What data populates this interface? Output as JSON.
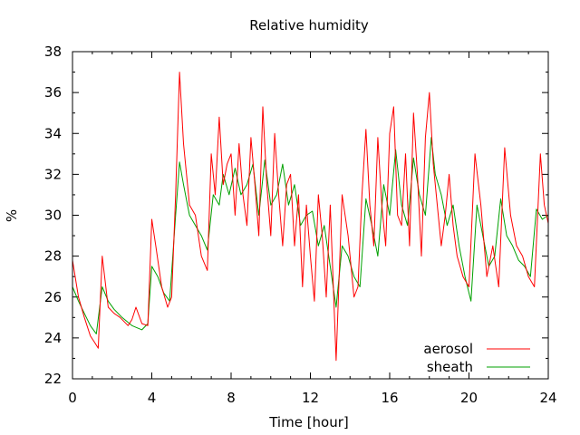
{
  "chart_data": {
    "type": "line",
    "title": "Relative humidity",
    "xlabel": "Time [hour]",
    "ylabel": "%",
    "xlim": [
      0,
      24
    ],
    "ylim": [
      22,
      38
    ],
    "xticks": [
      0,
      4,
      8,
      12,
      16,
      20,
      24
    ],
    "yticks": [
      22,
      24,
      26,
      28,
      30,
      32,
      34,
      36,
      38
    ],
    "grid": false,
    "legend_position": "bottom-right",
    "series": [
      {
        "name": "aerosol",
        "color": "#ff0000",
        "x": [
          0.0,
          0.3,
          0.6,
          0.9,
          1.1,
          1.3,
          1.5,
          1.8,
          2.1,
          2.4,
          2.8,
          3.0,
          3.2,
          3.5,
          3.8,
          4.0,
          4.2,
          4.5,
          4.8,
          5.0,
          5.2,
          5.4,
          5.6,
          5.9,
          6.2,
          6.5,
          6.8,
          7.0,
          7.2,
          7.4,
          7.6,
          7.8,
          8.0,
          8.2,
          8.4,
          8.6,
          8.8,
          9.0,
          9.2,
          9.4,
          9.6,
          9.8,
          10.0,
          10.2,
          10.4,
          10.6,
          10.8,
          11.0,
          11.2,
          11.4,
          11.6,
          11.8,
          12.0,
          12.2,
          12.4,
          12.6,
          12.8,
          13.0,
          13.3,
          13.6,
          13.9,
          14.2,
          14.4,
          14.6,
          14.8,
          15.0,
          15.2,
          15.4,
          15.6,
          15.8,
          16.0,
          16.2,
          16.4,
          16.6,
          16.8,
          17.0,
          17.2,
          17.4,
          17.6,
          17.8,
          18.0,
          18.2,
          18.4,
          18.6,
          18.8,
          19.0,
          19.2,
          19.4,
          19.7,
          20.0,
          20.3,
          20.6,
          20.9,
          21.2,
          21.5,
          21.8,
          22.1,
          22.4,
          22.7,
          23.0,
          23.3,
          23.6,
          23.8,
          24.0
        ],
        "y": [
          27.8,
          26.0,
          25.0,
          24.1,
          23.8,
          23.5,
          28.0,
          25.5,
          25.2,
          25.0,
          24.6,
          24.9,
          25.5,
          24.7,
          24.6,
          29.8,
          28.5,
          26.5,
          25.5,
          26.0,
          31.0,
          37.0,
          33.5,
          30.5,
          30.0,
          28.0,
          27.3,
          33.0,
          31.0,
          34.8,
          31.5,
          32.5,
          33.0,
          30.0,
          33.5,
          31.0,
          29.5,
          33.8,
          31.5,
          29.0,
          35.3,
          31.5,
          29.0,
          34.0,
          31.0,
          28.5,
          31.5,
          32.0,
          28.5,
          31.0,
          26.5,
          30.5,
          28.0,
          25.8,
          31.0,
          29.0,
          26.0,
          30.5,
          22.9,
          31.0,
          29.0,
          26.0,
          26.5,
          31.0,
          34.2,
          30.5,
          28.5,
          33.8,
          30.5,
          28.5,
          34.0,
          35.3,
          30.0,
          29.5,
          33.0,
          28.5,
          35.0,
          32.0,
          28.0,
          33.8,
          36.0,
          32.5,
          30.5,
          28.5,
          30.0,
          32.0,
          29.5,
          28.0,
          27.0,
          26.5,
          33.0,
          30.5,
          27.0,
          28.5,
          26.5,
          33.3,
          30.0,
          28.5,
          28.0,
          27.0,
          26.5,
          33.0,
          30.5,
          29.6
        ]
      },
      {
        "name": "sheath",
        "color": "#00a000",
        "x": [
          0.0,
          0.3,
          0.6,
          0.9,
          1.2,
          1.5,
          1.8,
          2.1,
          2.5,
          3.0,
          3.5,
          3.8,
          4.0,
          4.3,
          4.6,
          4.9,
          5.2,
          5.4,
          5.6,
          5.9,
          6.2,
          6.5,
          6.8,
          7.1,
          7.4,
          7.6,
          7.9,
          8.2,
          8.5,
          8.8,
          9.1,
          9.4,
          9.7,
          10.0,
          10.3,
          10.6,
          10.9,
          11.2,
          11.5,
          11.8,
          12.1,
          12.4,
          12.7,
          13.0,
          13.3,
          13.6,
          13.9,
          14.2,
          14.5,
          14.8,
          15.1,
          15.4,
          15.7,
          16.0,
          16.3,
          16.6,
          16.9,
          17.2,
          17.5,
          17.8,
          18.1,
          18.3,
          18.6,
          18.9,
          19.2,
          19.5,
          19.8,
          20.1,
          20.4,
          20.7,
          21.0,
          21.3,
          21.6,
          21.9,
          22.2,
          22.5,
          22.8,
          23.1,
          23.4,
          23.7,
          24.0
        ],
        "y": [
          26.5,
          25.8,
          25.2,
          24.6,
          24.2,
          26.5,
          25.8,
          25.4,
          25.0,
          24.6,
          24.4,
          24.7,
          27.5,
          27.0,
          26.2,
          25.8,
          30.0,
          32.6,
          31.5,
          30.0,
          29.5,
          29.0,
          28.3,
          31.0,
          30.5,
          32.0,
          31.0,
          32.3,
          31.0,
          31.5,
          32.5,
          30.0,
          32.7,
          30.5,
          31.0,
          32.5,
          30.5,
          31.5,
          29.5,
          30.0,
          30.2,
          28.5,
          29.5,
          27.5,
          25.5,
          28.5,
          28.0,
          27.0,
          26.5,
          30.8,
          29.5,
          28.0,
          31.5,
          30.0,
          33.2,
          30.5,
          29.5,
          32.8,
          31.0,
          30.0,
          33.8,
          32.0,
          31.0,
          29.5,
          30.5,
          28.5,
          27.0,
          25.8,
          30.5,
          29.0,
          27.5,
          28.0,
          30.8,
          29.0,
          28.5,
          27.8,
          27.5,
          27.0,
          30.3,
          29.8,
          30.0
        ]
      }
    ]
  }
}
